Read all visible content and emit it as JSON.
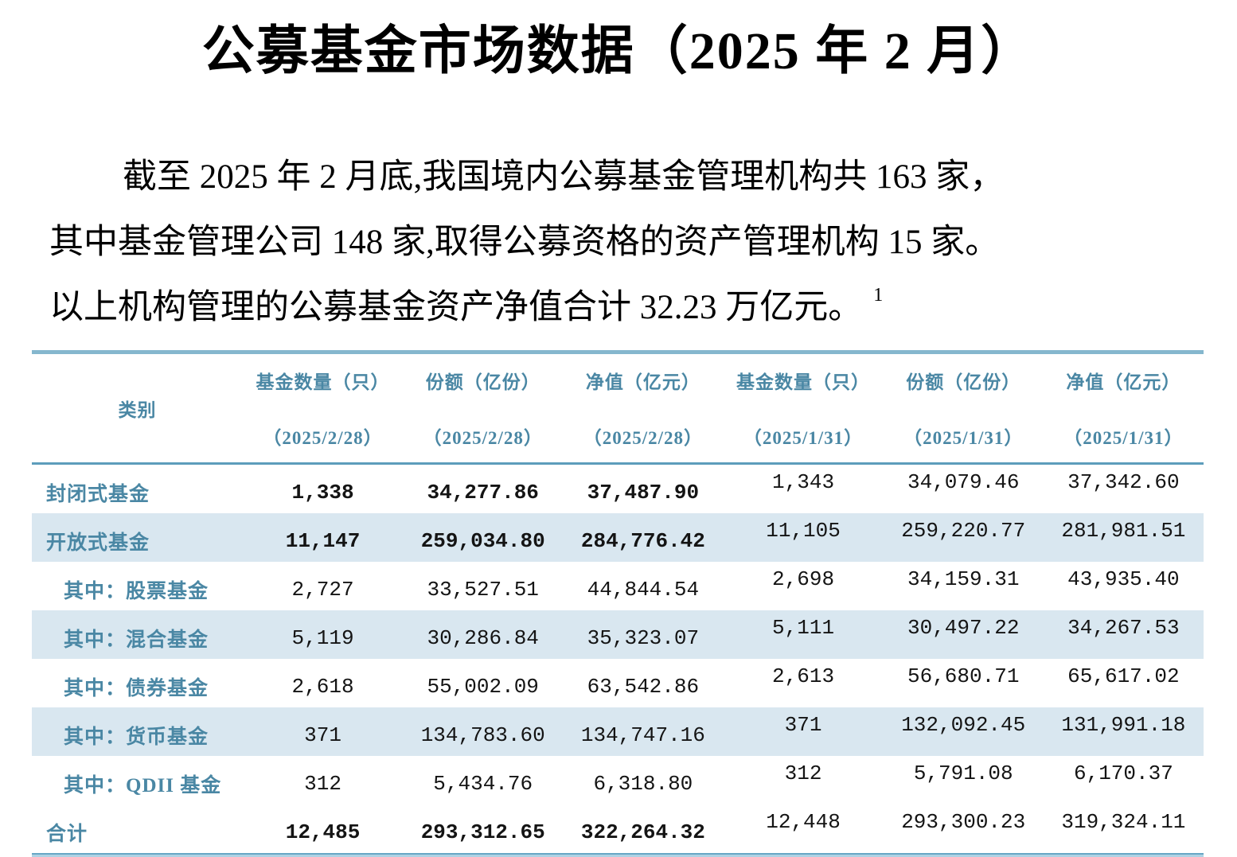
{
  "document": {
    "title": "公募基金市场数据（2025 年 2 月）",
    "paragraph_lines": [
      "截至 2025 年 2 月底,我国境内公募基金管理机构共 163 家，",
      "其中基金管理公司 148 家,取得公募资格的资产管理机构 15 家。",
      "以上机构管理的公募基金资产净值合计 32.23 万亿元。"
    ],
    "footnote_marker": "1"
  },
  "table": {
    "columns": [
      {
        "label": "类别",
        "sublabel": ""
      },
      {
        "label": "基金数量（只）",
        "sublabel": "（2025/2/28）"
      },
      {
        "label": "份额（亿份）",
        "sublabel": "（2025/2/28）"
      },
      {
        "label": "净值（亿元）",
        "sublabel": "（2025/2/28）"
      },
      {
        "label": "基金数量（只）",
        "sublabel": "（2025/1/31）"
      },
      {
        "label": "份额（亿份）",
        "sublabel": "（2025/1/31）"
      },
      {
        "label": "净值（亿元）",
        "sublabel": "（2025/1/31）"
      }
    ],
    "rows": [
      {
        "label": "封闭式基金",
        "indent": false,
        "emphasis": true,
        "shaded": false,
        "values": [
          "1,338",
          "34,277.86",
          "37,487.90",
          "1,343",
          "34,079.46",
          "37,342.60"
        ]
      },
      {
        "label": "开放式基金",
        "indent": false,
        "emphasis": true,
        "shaded": true,
        "values": [
          "11,147",
          "259,034.80",
          "284,776.42",
          "11,105",
          "259,220.77",
          "281,981.51"
        ]
      },
      {
        "label": "其中：股票基金",
        "indent": true,
        "emphasis": false,
        "shaded": false,
        "values": [
          "2,727",
          "33,527.51",
          "44,844.54",
          "2,698",
          "34,159.31",
          "43,935.40"
        ]
      },
      {
        "label": "其中：混合基金",
        "indent": true,
        "emphasis": false,
        "shaded": true,
        "values": [
          "5,119",
          "30,286.84",
          "35,323.07",
          "5,111",
          "30,497.22",
          "34,267.53"
        ]
      },
      {
        "label": "其中：债券基金",
        "indent": true,
        "emphasis": false,
        "shaded": false,
        "values": [
          "2,618",
          "55,002.09",
          "63,542.86",
          "2,613",
          "56,680.71",
          "65,617.02"
        ]
      },
      {
        "label": "其中：货币基金",
        "indent": true,
        "emphasis": false,
        "shaded": true,
        "values": [
          "371",
          "134,783.60",
          "134,747.16",
          "371",
          "132,092.45",
          "131,991.18"
        ]
      },
      {
        "label": "其中：QDII 基金",
        "indent": true,
        "emphasis": false,
        "shaded": false,
        "values": [
          "312",
          "5,434.76",
          "6,318.80",
          "312",
          "5,791.08",
          "6,170.37"
        ]
      },
      {
        "label": "合计",
        "indent": false,
        "emphasis": true,
        "shaded": false,
        "values": [
          "12,485",
          "293,312.65",
          "322,264.32",
          "12,448",
          "293,300.23",
          "319,324.11"
        ]
      }
    ]
  },
  "colors": {
    "accent_teal": "#4a87a4",
    "row_shade": "#d9e7f0",
    "rule_table_top": "#85b7ce",
    "rule_header_line": "#5d9dbb",
    "rule_bottom_dark": "#68a6c5",
    "rule_bottom_light": "#aed2e4",
    "body_text": "#000000"
  }
}
